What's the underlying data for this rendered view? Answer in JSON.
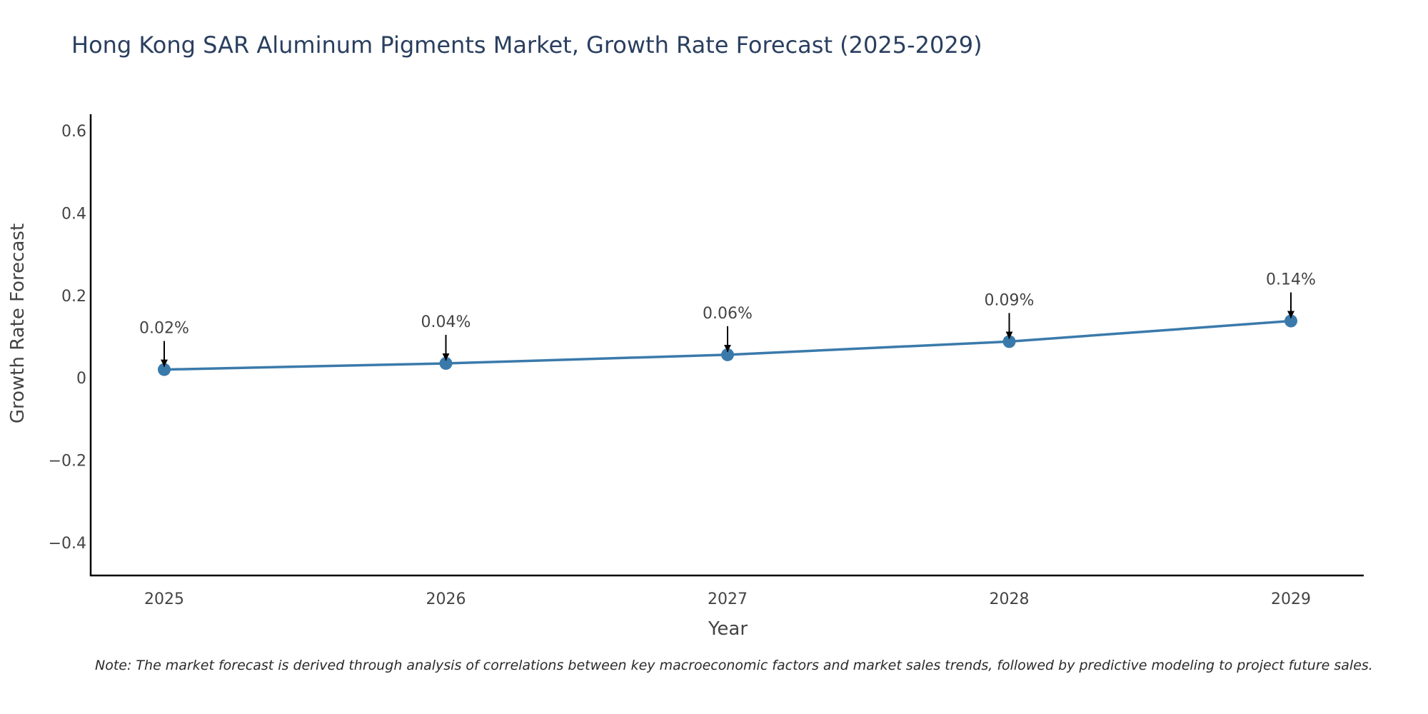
{
  "chart_data": {
    "type": "line",
    "title": "Hong Kong SAR Aluminum Pigments Market, Growth Rate Forecast (2025-2029)",
    "xlabel": "Year",
    "ylabel": "Growth Rate Forecast",
    "categories": [
      "2025",
      "2026",
      "2027",
      "2028",
      "2029"
    ],
    "series": [
      {
        "name": "Growth Rate Forecast",
        "values": [
          0.02,
          0.035,
          0.056,
          0.088,
          0.138
        ],
        "labels": [
          "0.02%",
          "0.04%",
          "0.06%",
          "0.09%",
          "0.14%"
        ]
      }
    ],
    "ylim": [
      -0.48,
      0.64
    ],
    "yticks": [
      -0.4,
      -0.2,
      0,
      0.2,
      0.4,
      0.6
    ],
    "ytick_labels": [
      "−0.4",
      "−0.2",
      "0",
      "0.2",
      "0.4",
      "0.6"
    ],
    "grid": false,
    "line_color": "#3a7aab",
    "marker_color": "#3a7aab",
    "arrow_color": "#000000",
    "note": "Note: The market forecast is derived through analysis of correlations between key macroeconomic factors and market sales trends, followed by predictive modeling to project future sales."
  }
}
